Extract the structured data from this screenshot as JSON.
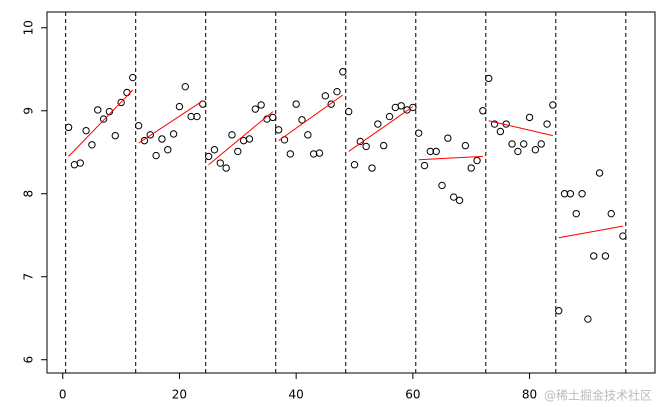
{
  "chart_data": {
    "type": "scatter",
    "x": [
      1,
      2,
      3,
      4,
      5,
      6,
      7,
      8,
      9,
      10,
      11,
      12,
      13,
      14,
      15,
      16,
      17,
      18,
      19,
      20,
      21,
      22,
      23,
      24,
      25,
      26,
      27,
      28,
      29,
      30,
      31,
      32,
      33,
      34,
      35,
      36,
      37,
      38,
      39,
      40,
      41,
      42,
      43,
      44,
      45,
      46,
      47,
      48,
      49,
      50,
      51,
      52,
      53,
      54,
      55,
      56,
      57,
      58,
      59,
      60,
      61,
      62,
      63,
      64,
      65,
      66,
      67,
      68,
      69,
      70,
      71,
      72,
      73,
      74,
      75,
      76,
      77,
      78,
      79,
      80,
      81,
      82,
      83,
      84,
      85,
      86,
      87,
      88,
      89,
      90,
      91,
      92,
      93,
      94,
      96
    ],
    "values": [
      8.8,
      8.35,
      8.37,
      8.76,
      8.59,
      9.01,
      8.9,
      8.99,
      8.7,
      9.1,
      9.22,
      9.4,
      8.82,
      8.64,
      8.71,
      8.46,
      8.66,
      8.53,
      8.72,
      9.05,
      9.29,
      8.93,
      8.93,
      9.08,
      8.45,
      8.53,
      8.37,
      8.31,
      8.71,
      8.51,
      8.64,
      8.66,
      9.02,
      9.07,
      8.9,
      8.92,
      8.77,
      8.65,
      8.48,
      9.08,
      8.89,
      8.71,
      8.48,
      8.49,
      9.18,
      9.08,
      9.23,
      9.47,
      8.99,
      8.35,
      8.63,
      8.57,
      8.31,
      8.84,
      8.58,
      8.93,
      9.04,
      9.06,
      9.01,
      9.04,
      8.73,
      8.34,
      8.51,
      8.51,
      8.1,
      8.67,
      7.96,
      7.92,
      8.58,
      8.31,
      8.4,
      9.0,
      9.39,
      8.84,
      8.75,
      8.84,
      8.6,
      8.51,
      8.6,
      8.92,
      8.53,
      8.6,
      8.84,
      9.07,
      6.59,
      8.0,
      8.0,
      7.76,
      8.0,
      6.49,
      7.25,
      8.25,
      7.25,
      7.76,
      7.49
    ],
    "color": "#000000",
    "fits": [
      {
        "x": [
          1,
          12
        ],
        "y": [
          8.45,
          9.25
        ]
      },
      {
        "x": [
          13,
          24
        ],
        "y": [
          8.61,
          9.12
        ]
      },
      {
        "x": [
          25,
          36
        ],
        "y": [
          8.35,
          8.99
        ]
      },
      {
        "x": [
          37,
          48
        ],
        "y": [
          8.64,
          9.19
        ]
      },
      {
        "x": [
          49,
          60
        ],
        "y": [
          8.51,
          9.05
        ]
      },
      {
        "x": [
          61,
          72
        ],
        "y": [
          8.41,
          8.45
        ]
      },
      {
        "x": [
          73,
          84
        ],
        "y": [
          8.88,
          8.7
        ]
      },
      {
        "x": [
          85,
          96
        ],
        "y": [
          7.47,
          7.61
        ]
      }
    ],
    "fit_color": "#ff0000",
    "vlines": [
      0.5,
      12.5,
      24.5,
      36.5,
      48.5,
      60.5,
      72.5,
      84.5,
      96.5
    ],
    "xlim": [
      -2.7,
      101.5
    ],
    "ylim": [
      5.84,
      10.19
    ],
    "xticks": [
      0,
      20,
      40,
      60,
      80
    ],
    "yticks": [
      6,
      7,
      8,
      9,
      10
    ],
    "watermark": "@稀土掘金技术社区"
  }
}
